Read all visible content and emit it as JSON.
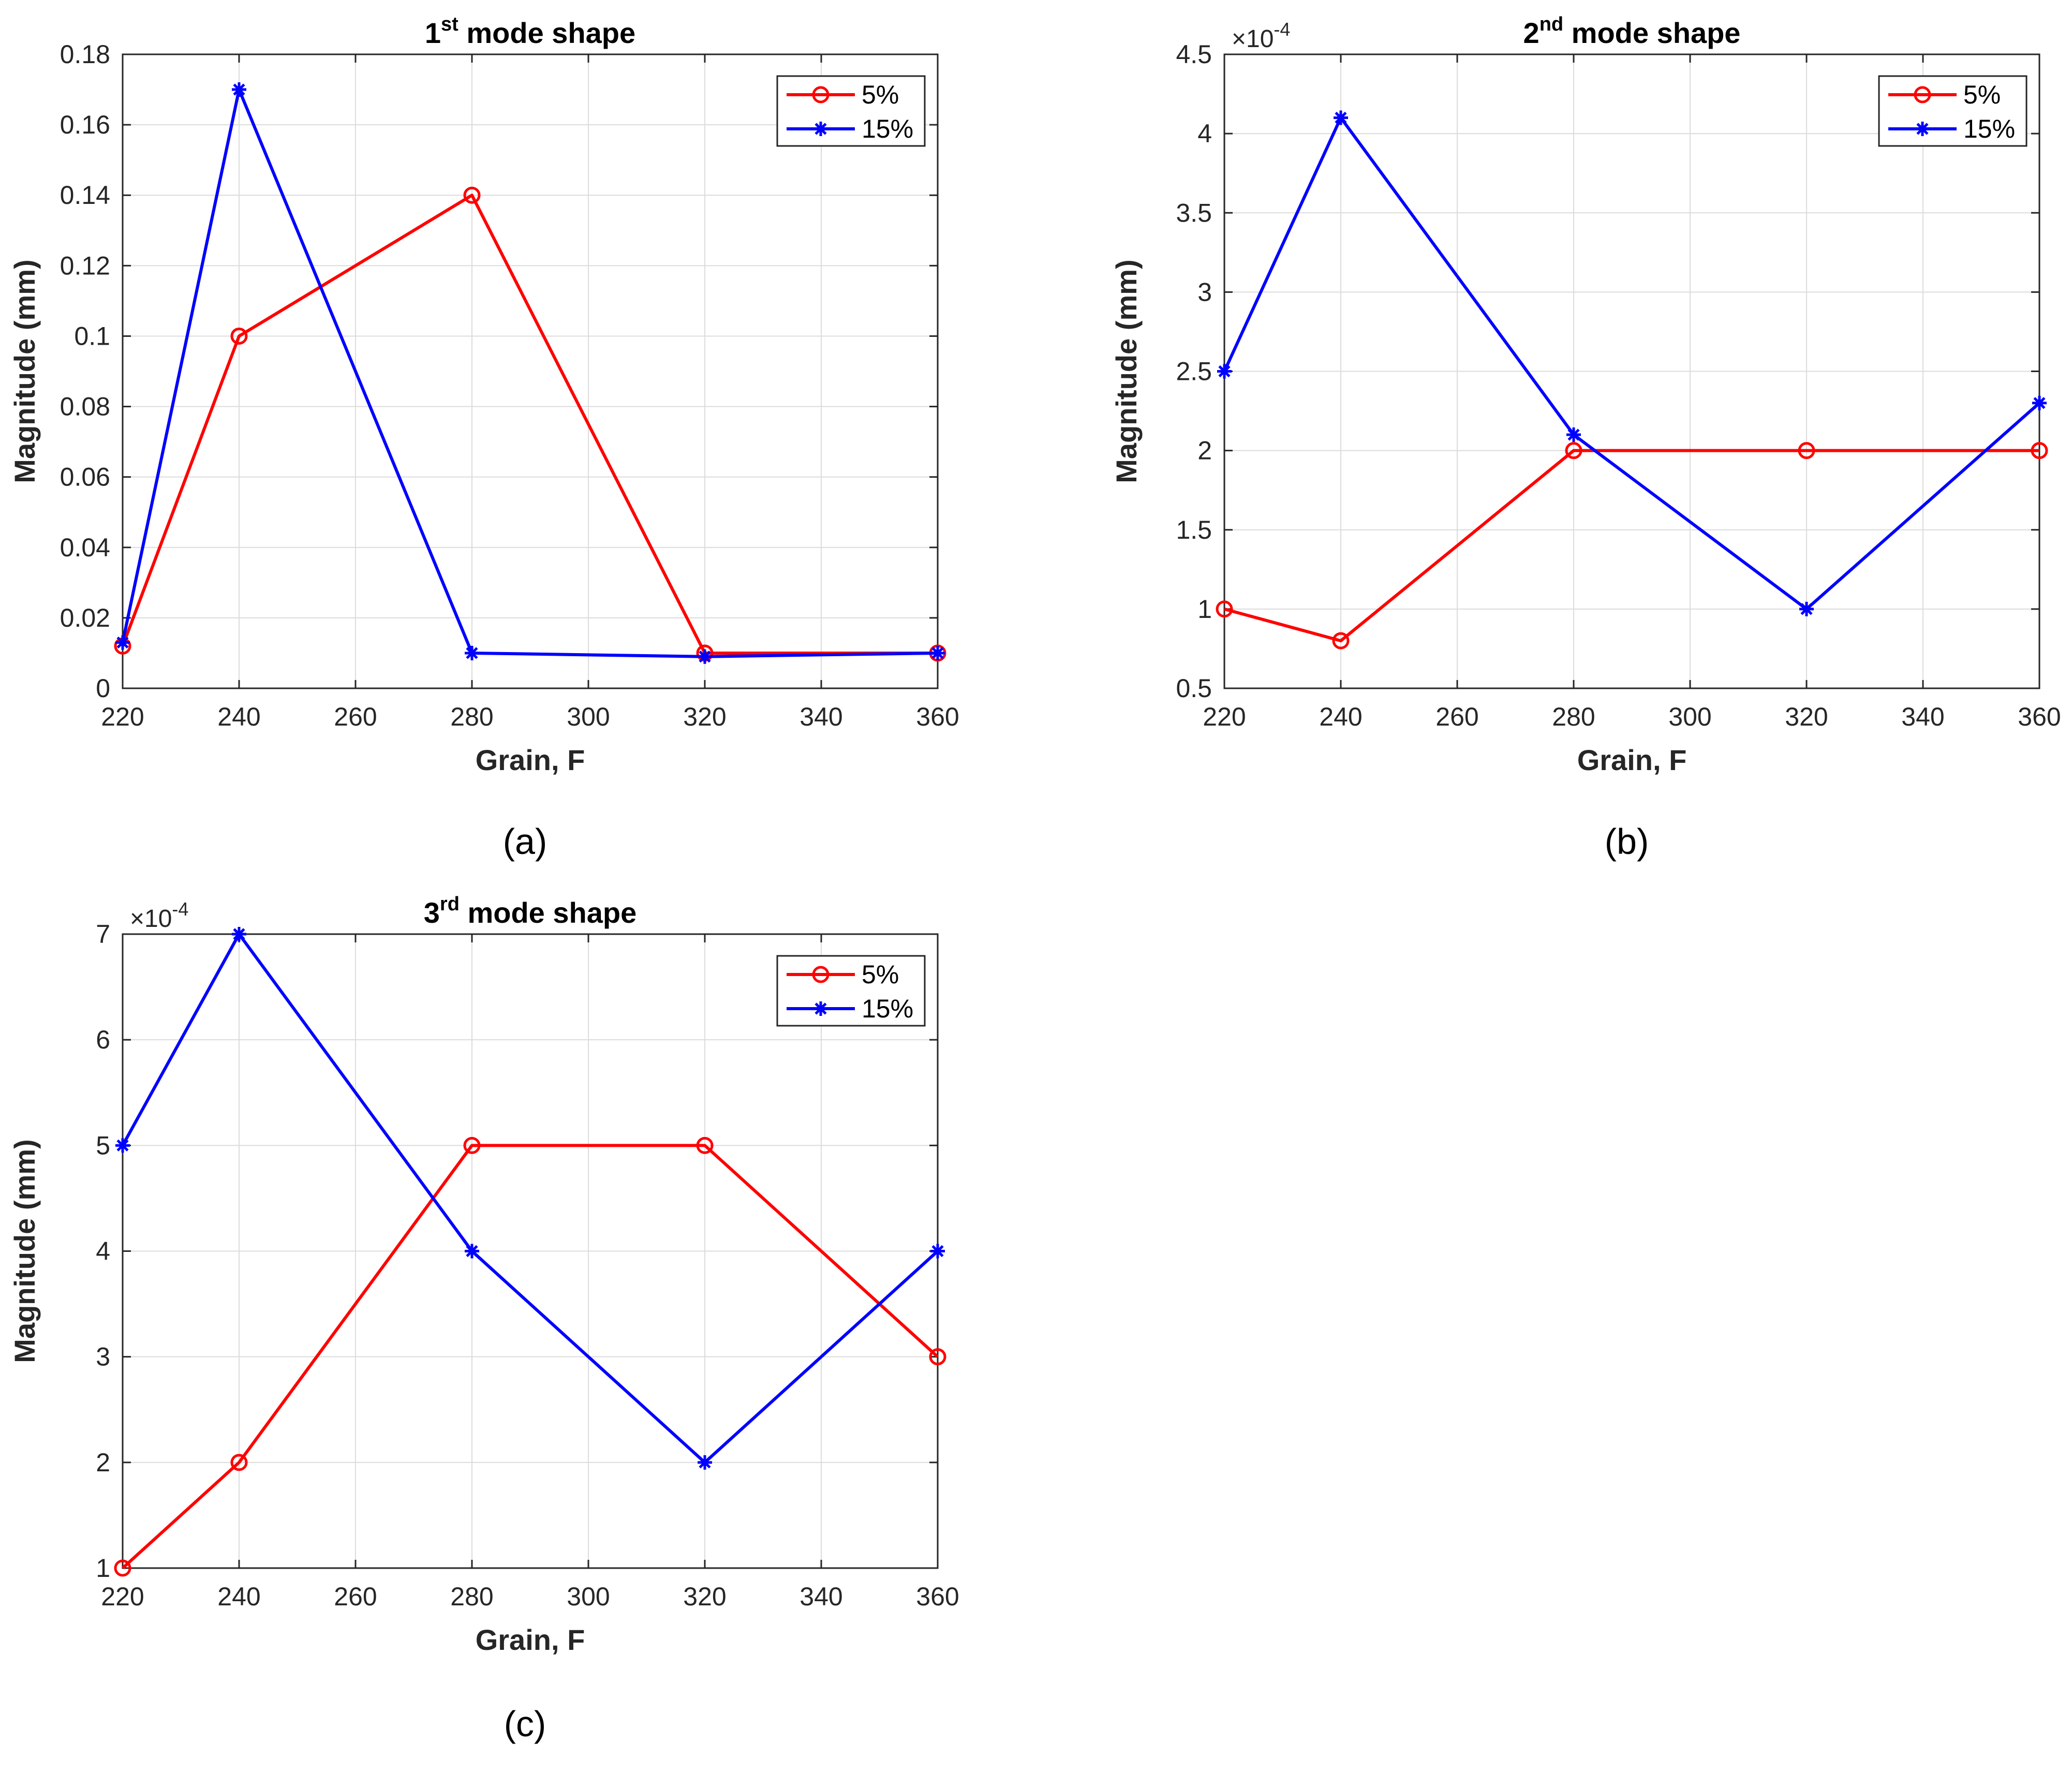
{
  "colors": {
    "red": "#ff0000",
    "blue": "#0000ff",
    "grid": "#dcdcdc",
    "axis": "#262626"
  },
  "chart_data": [
    {
      "type": "line",
      "panel_label": "(a)",
      "title_main": "1",
      "title_sup": "st",
      "title_rest": " mode shape",
      "xlabel": "Grain, F",
      "ylabel": "Magnitude (mm)",
      "exponent_label": "",
      "x": [
        220,
        240,
        280,
        320,
        360
      ],
      "xlim": [
        220,
        360
      ],
      "ylim": [
        0,
        0.18
      ],
      "xticks": [
        220,
        240,
        260,
        280,
        300,
        320,
        340,
        360
      ],
      "xtick_labels": [
        "220",
        "240",
        "260",
        "280",
        "300",
        "320",
        "340",
        "360"
      ],
      "yticks": [
        0,
        0.02,
        0.04,
        0.06,
        0.08,
        0.1,
        0.12,
        0.14,
        0.16,
        0.18
      ],
      "ytick_labels": [
        "0",
        "0.02",
        "0.04",
        "0.06",
        "0.08",
        "0.1",
        "0.12",
        "0.14",
        "0.16",
        "0.18"
      ],
      "grid": true,
      "legend_position": "top-right",
      "series": [
        {
          "name": "5%",
          "color": "#ff0000",
          "marker": "circle",
          "values": [
            0.012,
            0.1,
            0.14,
            0.01,
            0.01
          ]
        },
        {
          "name": "15%",
          "color": "#0000ff",
          "marker": "asterisk",
          "values": [
            0.013,
            0.17,
            0.01,
            0.009,
            0.01
          ]
        }
      ]
    },
    {
      "type": "line",
      "panel_label": "(b)",
      "title_main": "2",
      "title_sup": "nd",
      "title_rest": " mode shape",
      "xlabel": "Grain, F",
      "ylabel": "Magnitude (mm)",
      "exponent_label": "×10",
      "exponent_sup": "-4",
      "x": [
        220,
        240,
        280,
        320,
        360
      ],
      "xlim": [
        220,
        360
      ],
      "ylim": [
        0.5,
        4.5
      ],
      "xticks": [
        220,
        240,
        260,
        280,
        300,
        320,
        340,
        360
      ],
      "xtick_labels": [
        "220",
        "240",
        "260",
        "280",
        "300",
        "320",
        "340",
        "360"
      ],
      "yticks": [
        0.5,
        1,
        1.5,
        2,
        2.5,
        3,
        3.5,
        4,
        4.5
      ],
      "ytick_labels": [
        "0.5",
        "1",
        "1.5",
        "2",
        "2.5",
        "3",
        "3.5",
        "4",
        "4.5"
      ],
      "grid": true,
      "legend_position": "top-right",
      "series": [
        {
          "name": "5%",
          "color": "#ff0000",
          "marker": "circle",
          "values": [
            1.0,
            0.8,
            2.0,
            2.0,
            2.0
          ]
        },
        {
          "name": "15%",
          "color": "#0000ff",
          "marker": "asterisk",
          "values": [
            2.5,
            4.1,
            2.1,
            1.0,
            2.3
          ]
        }
      ]
    },
    {
      "type": "line",
      "panel_label": "(c)",
      "title_main": "3",
      "title_sup": "rd",
      "title_rest": " mode shape",
      "xlabel": "Grain, F",
      "ylabel": "Magnitude (mm)",
      "exponent_label": "×10",
      "exponent_sup": "-4",
      "x": [
        220,
        240,
        280,
        320,
        360
      ],
      "xlim": [
        220,
        360
      ],
      "ylim": [
        1,
        7
      ],
      "xticks": [
        220,
        240,
        260,
        280,
        300,
        320,
        340,
        360
      ],
      "xtick_labels": [
        "220",
        "240",
        "260",
        "280",
        "300",
        "320",
        "340",
        "360"
      ],
      "yticks": [
        1,
        2,
        3,
        4,
        5,
        6,
        7
      ],
      "ytick_labels": [
        "1",
        "2",
        "3",
        "4",
        "5",
        "6",
        "7"
      ],
      "grid": true,
      "legend_position": "top-right",
      "series": [
        {
          "name": "5%",
          "color": "#ff0000",
          "marker": "circle",
          "values": [
            1,
            2,
            5,
            5,
            3
          ]
        },
        {
          "name": "15%",
          "color": "#0000ff",
          "marker": "asterisk",
          "values": [
            5,
            7,
            4,
            2,
            4
          ]
        }
      ]
    }
  ]
}
